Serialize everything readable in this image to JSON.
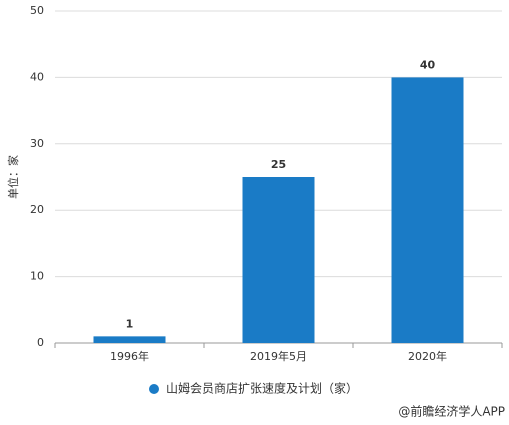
{
  "chart_data": {
    "type": "bar",
    "y_label": "单位：家",
    "categories": [
      "1996年",
      "2019年5月",
      "2020年"
    ],
    "series": [
      {
        "name": "山姆会员商店扩张速度及计划（家）",
        "color": "#1a7bc6",
        "values": [
          1,
          25,
          40
        ]
      }
    ],
    "ylim": [
      0,
      50
    ],
    "yticks": [
      0,
      10,
      20,
      30,
      40,
      50
    ],
    "grid": true,
    "legend": "bottom",
    "source": "@前瞻经济学人APP"
  }
}
